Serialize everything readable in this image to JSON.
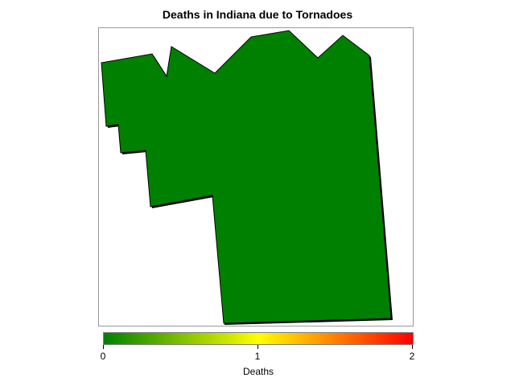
{
  "map": {
    "title": "Deaths in Indiana due to Tornadoes",
    "region_fill_color": "#008000",
    "region_value": 0
  },
  "legend": {
    "title": "Deaths",
    "min": 0,
    "max": 2,
    "ticks": [
      "0",
      "1",
      "2"
    ],
    "gradient_colors": [
      "#008000",
      "#ffff00",
      "#ff0000"
    ]
  }
}
